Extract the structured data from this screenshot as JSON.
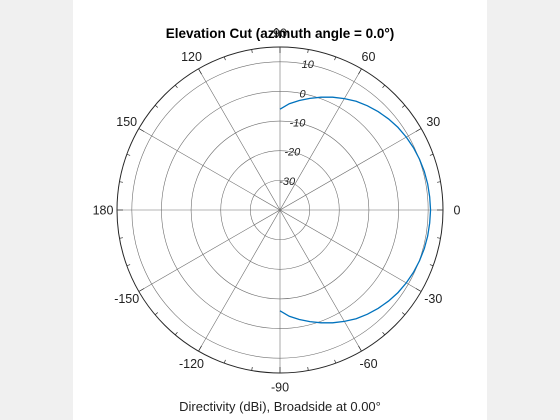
{
  "chart_data": {
    "type": "line",
    "coordinate_system": "polar",
    "title": "Elevation Cut (azimuth angle = 0.0°)",
    "subtitle": "Directivity (dBi), Broadside at 0.00°",
    "angle_unit": "degrees",
    "angle_direction": "counterclockwise",
    "zero_angle_location": "right",
    "angle_tick_labels": [
      "0",
      "30",
      "60",
      "90",
      "120",
      "150",
      "180",
      "-150",
      "-120",
      "-90",
      "-60",
      "-30"
    ],
    "angle_ticks": [
      0,
      30,
      60,
      90,
      120,
      150,
      180,
      -150,
      -120,
      -90,
      -60,
      -30
    ],
    "radial_tick_labels": [
      "-30",
      "-20",
      "-10",
      "0",
      "10"
    ],
    "radial_ticks": [
      -30,
      -20,
      -10,
      0,
      10
    ],
    "rlim": [
      -40,
      15
    ],
    "grid": true,
    "series": [
      {
        "color": "#0072bd",
        "angles": [
          -90,
          -85,
          -80,
          -75,
          -70,
          -65,
          -60,
          -55,
          -50,
          -45,
          -40,
          -35,
          -30,
          -25,
          -20,
          -15,
          -10,
          -5,
          0,
          5,
          10,
          15,
          20,
          25,
          30,
          35,
          40,
          45,
          50,
          55,
          60,
          65,
          70,
          75,
          80,
          85,
          90
        ],
        "values": [
          -6.0,
          -4.0,
          -2.5,
          -1.0,
          0.5,
          2.0,
          3.4,
          4.8,
          5.9,
          6.9,
          7.8,
          8.6,
          9.2,
          9.7,
          10.1,
          10.4,
          10.6,
          10.7,
          10.8,
          10.7,
          10.6,
          10.4,
          10.1,
          9.7,
          9.2,
          8.6,
          7.8,
          6.9,
          5.9,
          4.8,
          3.4,
          2.0,
          0.5,
          -1.0,
          -2.5,
          -4.0,
          -6.0
        ]
      }
    ]
  }
}
